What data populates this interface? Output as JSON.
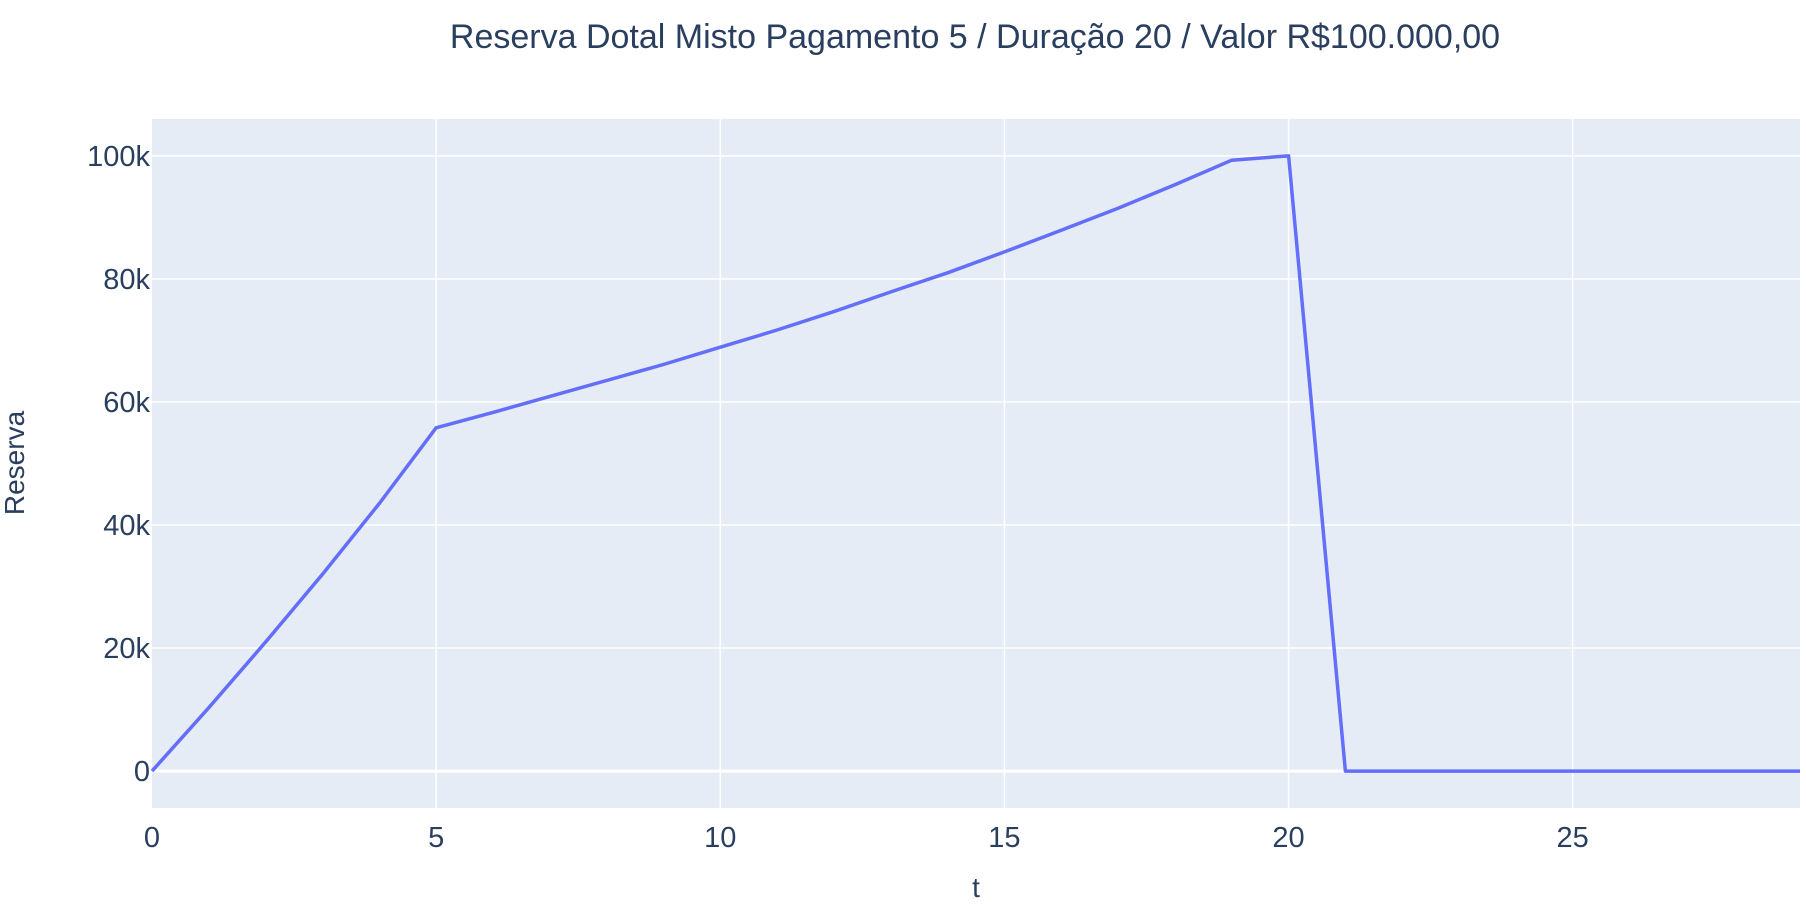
{
  "chart_data": {
    "type": "line",
    "title": "Reserva Dotal Misto Pagamento 5 / Duração 20 / Valor R$100.000,00",
    "xlabel": "t",
    "ylabel": "Reserva",
    "xlim": [
      0,
      29
    ],
    "ylim": [
      -6000,
      106000
    ],
    "x_ticks": [
      0,
      5,
      10,
      15,
      20,
      25
    ],
    "x_tick_labels": [
      "0",
      "5",
      "10",
      "15",
      "20",
      "25"
    ],
    "y_ticks": [
      0,
      20000,
      40000,
      60000,
      80000,
      100000
    ],
    "y_tick_labels": [
      "0",
      "20k",
      "40k",
      "60k",
      "80k",
      "100k"
    ],
    "grid": true,
    "legend": "none",
    "colors": {
      "plot_bg": "#e5ecf6",
      "grid": "#ffffff",
      "line": "#636efa",
      "text": "#2a3f5f"
    },
    "series": [
      {
        "x": [
          0,
          1,
          2,
          3,
          4,
          5,
          6,
          7,
          8,
          9,
          10,
          11,
          12,
          13,
          14,
          15,
          16,
          17,
          18,
          19,
          20,
          21,
          22,
          23,
          24,
          25,
          26,
          27,
          28,
          29
        ],
        "y": [
          0,
          10300,
          21000,
          32000,
          43500,
          55800,
          58300,
          60900,
          63500,
          66100,
          68900,
          71700,
          74700,
          77900,
          81000,
          84400,
          87900,
          91500,
          95300,
          99300,
          100000,
          0,
          0,
          0,
          0,
          0,
          0,
          0,
          0,
          0
        ]
      }
    ]
  }
}
